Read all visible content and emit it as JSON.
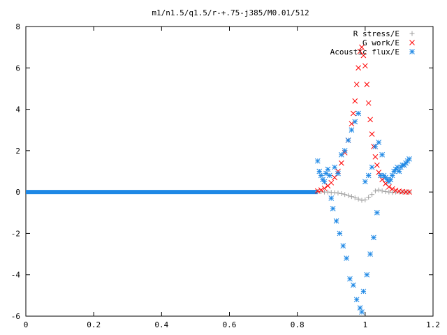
{
  "chart_data": {
    "type": "scatter",
    "title": "m1/n1.5/q1.5/r-+.75-j385/M0.01/512",
    "xlabel": "",
    "ylabel": "",
    "xlim": [
      0,
      1.2
    ],
    "ylim": [
      -6,
      8
    ],
    "xticks": [
      "0",
      "0.2",
      "0.4",
      "0.6",
      "0.8",
      "1",
      "1.2"
    ],
    "yticks": [
      "-6",
      "-4",
      "-2",
      "0",
      "2",
      "4",
      "6",
      "8"
    ],
    "legend_position": "top-right",
    "grid": false,
    "series": [
      {
        "name": "R stress/E",
        "marker": "plus",
        "color": "#a0a0a0",
        "x": [
          0.86,
          0.87,
          0.88,
          0.89,
          0.9,
          0.91,
          0.92,
          0.93,
          0.94,
          0.95,
          0.96,
          0.97,
          0.98,
          0.99,
          1.0,
          1.01,
          1.02,
          1.03,
          1.04,
          1.05,
          1.06,
          1.07,
          1.08,
          1.09,
          1.1,
          1.11,
          1.12,
          1.13
        ],
        "y": [
          0.02,
          0.02,
          0.0,
          0.0,
          -0.02,
          -0.03,
          -0.05,
          -0.08,
          -0.12,
          -0.17,
          -0.22,
          -0.28,
          -0.34,
          -0.4,
          -0.38,
          -0.25,
          -0.12,
          0.05,
          0.1,
          0.05,
          0.02,
          0.0,
          -0.02,
          0.0,
          0.0,
          0.0,
          0.0,
          0.0
        ]
      },
      {
        "name": "G work/E",
        "marker": "cross",
        "color": "#ff0000",
        "x": [
          0.86,
          0.87,
          0.88,
          0.89,
          0.9,
          0.91,
          0.92,
          0.93,
          0.94,
          0.95,
          0.96,
          0.965,
          0.97,
          0.975,
          0.98,
          0.985,
          0.99,
          0.995,
          1.0,
          1.005,
          1.01,
          1.015,
          1.02,
          1.025,
          1.03,
          1.035,
          1.04,
          1.05,
          1.06,
          1.07,
          1.08,
          1.09,
          1.1,
          1.11,
          1.12,
          1.13
        ],
        "y": [
          0.05,
          0.1,
          0.18,
          0.3,
          0.45,
          0.7,
          1.0,
          1.4,
          1.9,
          2.5,
          3.3,
          3.8,
          4.4,
          5.2,
          6.0,
          6.8,
          7.0,
          6.6,
          6.1,
          5.2,
          4.3,
          3.5,
          2.8,
          2.2,
          1.7,
          1.3,
          0.95,
          0.6,
          0.4,
          0.25,
          0.15,
          0.08,
          0.04,
          0.02,
          0.0,
          0.0
        ]
      },
      {
        "name": "Acoustic flux/E",
        "marker": "star",
        "color": "#1e88e5",
        "x": [
          0.86,
          0.865,
          0.87,
          0.875,
          0.88,
          0.885,
          0.89,
          0.895,
          0.9,
          0.905,
          0.91,
          0.915,
          0.92,
          0.925,
          0.93,
          0.935,
          0.94,
          0.945,
          0.95,
          0.955,
          0.96,
          0.965,
          0.97,
          0.975,
          0.98,
          0.985,
          0.99,
          0.995,
          1.0,
          1.005,
          1.01,
          1.015,
          1.02,
          1.025,
          1.03,
          1.035,
          1.04,
          1.045,
          1.05,
          1.055,
          1.06,
          1.065,
          1.07,
          1.075,
          1.08,
          1.085,
          1.09,
          1.095,
          1.1,
          1.105,
          1.11,
          1.115,
          1.12,
          1.125,
          1.13
        ],
        "y": [
          1.5,
          1.0,
          0.8,
          0.6,
          0.5,
          0.9,
          1.1,
          0.8,
          -0.3,
          -0.8,
          1.2,
          -1.4,
          0.9,
          -2.0,
          1.8,
          -2.6,
          2.0,
          -3.2,
          2.5,
          -4.2,
          3.0,
          -4.5,
          3.4,
          -5.2,
          3.8,
          -5.6,
          -5.8,
          -4.8,
          0.5,
          -4.0,
          0.8,
          -3.0,
          1.2,
          -2.2,
          2.2,
          -1.0,
          2.4,
          0.8,
          1.8,
          0.8,
          0.7,
          0.6,
          0.5,
          0.6,
          0.8,
          1.0,
          1.1,
          1.2,
          1.0,
          1.2,
          1.3,
          1.3,
          1.4,
          1.5,
          1.6
        ]
      }
    ]
  }
}
